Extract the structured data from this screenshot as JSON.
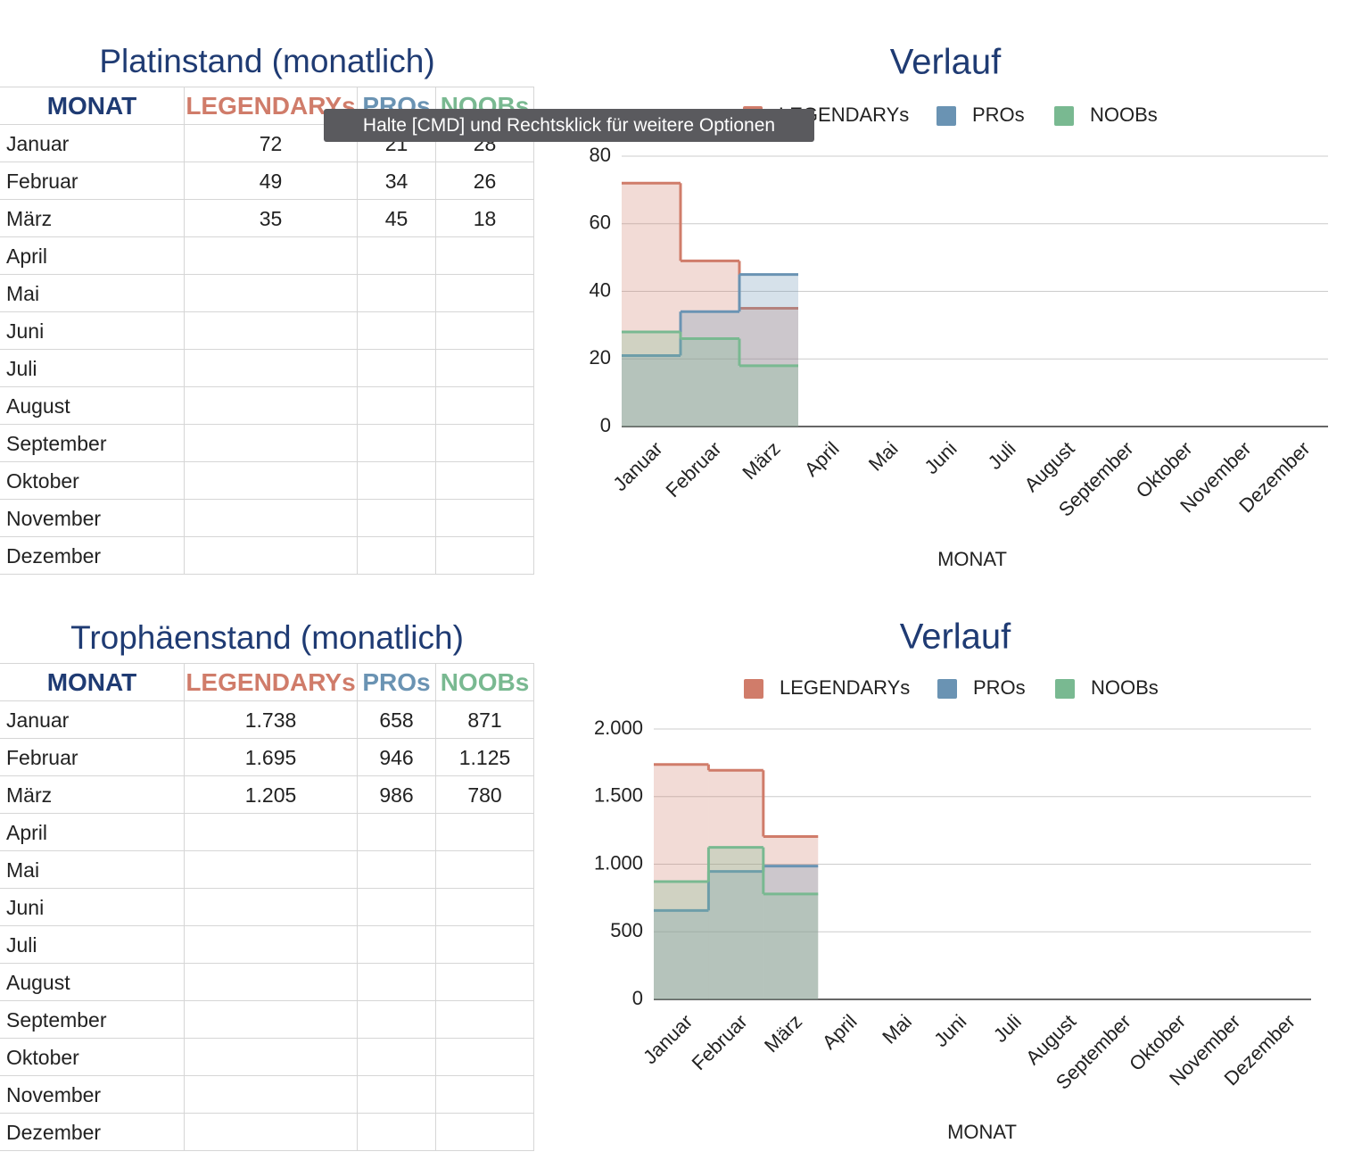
{
  "tooltip": "Halte [CMD] und Rechtsklick für weitere Optionen",
  "tables": [
    {
      "title": "Platinstand (monatlich)",
      "header": [
        "MONAT",
        "LEGENDARYs",
        "PROs",
        "NOOBs"
      ],
      "rows": [
        [
          "Januar",
          "72",
          "21",
          "28"
        ],
        [
          "Februar",
          "49",
          "34",
          "26"
        ],
        [
          "März",
          "35",
          "45",
          "18"
        ],
        [
          "April"
        ],
        [
          "Mai"
        ],
        [
          "Juni"
        ],
        [
          "Juli"
        ],
        [
          "August"
        ],
        [
          "September"
        ],
        [
          "Oktober"
        ],
        [
          "November"
        ],
        [
          "Dezember"
        ]
      ]
    },
    {
      "title": "Trophäenstand (monatlich)",
      "header": [
        "MONAT",
        "LEGENDARYs",
        "PROs",
        "NOOBs"
      ],
      "rows": [
        [
          "Januar",
          "1.738",
          "658",
          "871"
        ],
        [
          "Februar",
          "1.695",
          "946",
          "1.125"
        ],
        [
          "März",
          "1.205",
          "986",
          "780"
        ],
        [
          "April"
        ],
        [
          "Mai"
        ],
        [
          "Juni"
        ],
        [
          "Juli"
        ],
        [
          "August"
        ],
        [
          "September"
        ],
        [
          "Oktober"
        ],
        [
          "November"
        ],
        [
          "Dezember"
        ]
      ]
    }
  ],
  "chart_data": [
    {
      "type": "stepped-area",
      "title": "Verlauf",
      "x_label": "MONAT",
      "categories": [
        "Januar",
        "Februar",
        "März",
        "April",
        "Mai",
        "Juni",
        "Juli",
        "August",
        "September",
        "Oktober",
        "November",
        "Dezember"
      ],
      "series": [
        {
          "name": "LEGENDARYs",
          "color": "#d07c6a",
          "values": [
            72,
            49,
            35,
            null,
            null,
            null,
            null,
            null,
            null,
            null,
            null,
            null
          ]
        },
        {
          "name": "PROs",
          "color": "#6a93b3",
          "values": [
            21,
            34,
            45,
            null,
            null,
            null,
            null,
            null,
            null,
            null,
            null,
            null
          ]
        },
        {
          "name": "NOOBs",
          "color": "#79b991",
          "values": [
            28,
            26,
            18,
            null,
            null,
            null,
            null,
            null,
            null,
            null,
            null,
            null
          ]
        }
      ],
      "ylim": [
        0,
        80
      ],
      "yticks": [
        0,
        20,
        40,
        60,
        80
      ],
      "grid": true,
      "legend": "top"
    },
    {
      "type": "stepped-area",
      "title": "Verlauf",
      "x_label": "MONAT",
      "categories": [
        "Januar",
        "Februar",
        "März",
        "April",
        "Mai",
        "Juni",
        "Juli",
        "August",
        "September",
        "Oktober",
        "November",
        "Dezember"
      ],
      "series": [
        {
          "name": "LEGENDARYs",
          "color": "#d07c6a",
          "values": [
            1738,
            1695,
            1205,
            null,
            null,
            null,
            null,
            null,
            null,
            null,
            null,
            null
          ]
        },
        {
          "name": "PROs",
          "color": "#6a93b3",
          "values": [
            658,
            946,
            986,
            null,
            null,
            null,
            null,
            null,
            null,
            null,
            null,
            null
          ]
        },
        {
          "name": "NOOBs",
          "color": "#79b991",
          "values": [
            871,
            1125,
            780,
            null,
            null,
            null,
            null,
            null,
            null,
            null,
            null,
            null
          ]
        }
      ],
      "ylim": [
        0,
        2000
      ],
      "yticks": [
        0,
        500,
        {
          "value": 1000,
          "label": "1.000"
        },
        {
          "value": 1500,
          "label": "1.500"
        },
        {
          "value": 2000,
          "label": "2.000"
        }
      ],
      "grid": true,
      "legend": "top"
    }
  ]
}
